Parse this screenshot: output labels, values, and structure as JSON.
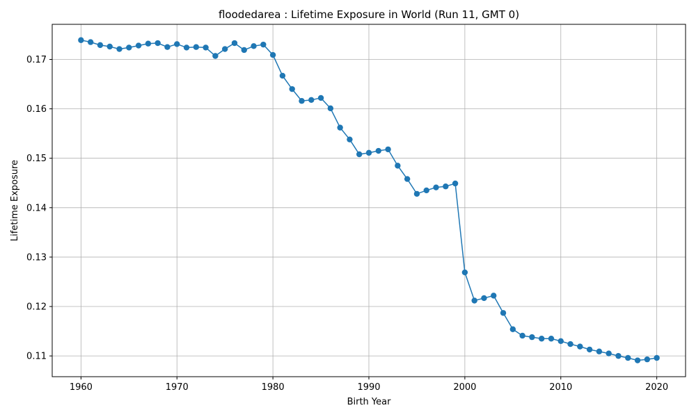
{
  "chart_data": {
    "type": "line",
    "title": "floodedarea : Lifetime Exposure in World (Run 11, GMT 0)",
    "xlabel": "Birth Year",
    "ylabel": "Lifetime Exposure",
    "xlim": [
      1957,
      2023
    ],
    "ylim": [
      0.1058,
      0.1771
    ],
    "xticks": [
      1960,
      1970,
      1980,
      1990,
      2000,
      2010,
      2020
    ],
    "yticks": [
      0.11,
      0.12,
      0.13,
      0.14,
      0.15,
      0.16,
      0.17
    ],
    "grid": true,
    "color": "#1f77b4",
    "marker": "circle",
    "series": [
      {
        "x": [
          1960,
          1961,
          1962,
          1963,
          1964,
          1965,
          1966,
          1967,
          1968,
          1969,
          1970,
          1971,
          1972,
          1973,
          1974,
          1975,
          1976,
          1977,
          1978,
          1979,
          1980,
          1981,
          1982,
          1983,
          1984,
          1985,
          1986,
          1987,
          1988,
          1989,
          1990,
          1991,
          1992,
          1993,
          1994,
          1995,
          1996,
          1997,
          1998,
          1999,
          2000,
          2001,
          2002,
          2003,
          2004,
          2005,
          2006,
          2007,
          2008,
          2009,
          2010,
          2011,
          2012,
          2013,
          2014,
          2015,
          2016,
          2017,
          2018,
          2019,
          2020
        ],
        "y": [
          0.1739,
          0.1735,
          0.1729,
          0.1726,
          0.1721,
          0.1724,
          0.1728,
          0.1732,
          0.1733,
          0.1725,
          0.1731,
          0.1724,
          0.1725,
          0.1724,
          0.1707,
          0.1721,
          0.1733,
          0.1719,
          0.1727,
          0.173,
          0.1709,
          0.1667,
          0.164,
          0.1616,
          0.1618,
          0.1622,
          0.1601,
          0.1562,
          0.1538,
          0.1508,
          0.1511,
          0.1515,
          0.1518,
          0.1485,
          0.1458,
          0.1428,
          0.1435,
          0.1441,
          0.1443,
          0.1449,
          0.1269,
          0.1212,
          0.1217,
          0.1222,
          0.1187,
          0.1154,
          0.1141,
          0.1138,
          0.1135,
          0.1135,
          0.113,
          0.1124,
          0.1119,
          0.1113,
          0.1109,
          0.1105,
          0.11,
          0.1096,
          0.1091,
          0.1093,
          0.1096
        ]
      }
    ]
  }
}
